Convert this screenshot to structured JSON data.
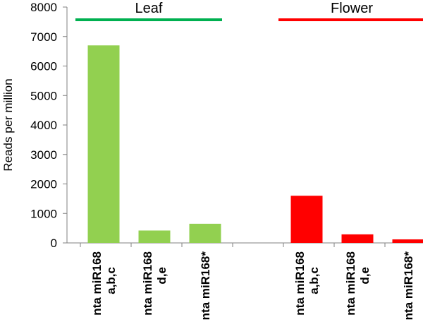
{
  "chart_data": {
    "type": "bar",
    "ylabel": "Reads per million",
    "ylim": [
      0,
      8000
    ],
    "yticks": [
      0,
      1000,
      2000,
      3000,
      4000,
      5000,
      6000,
      7000,
      8000
    ],
    "grid": false,
    "groups": [
      {
        "name": "Leaf",
        "color": "#92d050",
        "bracket_color": "#00b050",
        "categories": [
          [
            "nta miR168",
            "a,b,c"
          ],
          [
            "nta miR168",
            "d,e"
          ],
          [
            "nta miR168*"
          ]
        ],
        "values": [
          6700,
          420,
          650
        ]
      },
      {
        "name": "Flower",
        "color": "#ff0000",
        "bracket_color": "#ff0000",
        "categories": [
          [
            "nta miR168",
            "a,b,c"
          ],
          [
            "nta miR168",
            "d,e"
          ],
          [
            "nta miR168*"
          ]
        ],
        "values": [
          1600,
          290,
          120
        ]
      }
    ]
  }
}
